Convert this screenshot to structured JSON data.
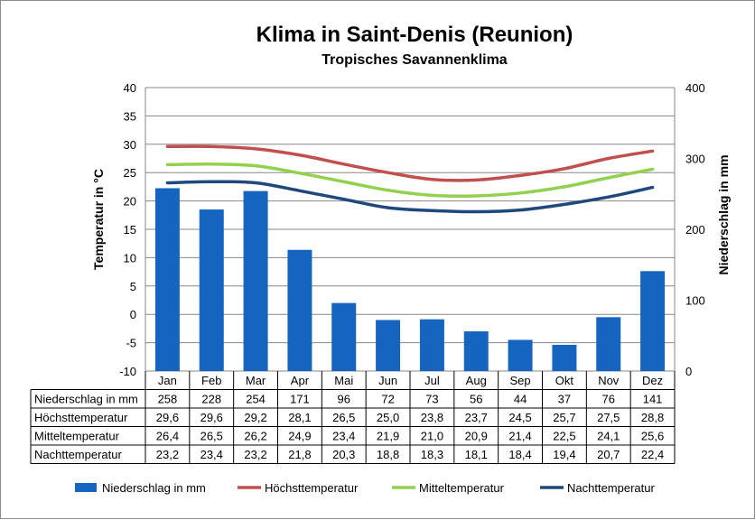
{
  "chart_data": {
    "type": "bar",
    "title": "Klima in Saint-Denis (Reunion)",
    "subtitle": "Tropisches Savannenklima",
    "ylabel": "Temperatur in °C",
    "y2label": "Niederschlag in mm",
    "ylim": [
      -10,
      40
    ],
    "yticks": [
      "40",
      "35",
      "30",
      "25",
      "20",
      "15",
      "10",
      "5",
      "0",
      "-5",
      "-10"
    ],
    "y2lim": [
      0,
      400
    ],
    "y2ticks": [
      "400",
      "300",
      "200",
      "100",
      "0"
    ],
    "grid": true,
    "legend_position": "bottom",
    "categories": [
      "Jan",
      "Feb",
      "Mar",
      "Apr",
      "Mai",
      "Jun",
      "Jul",
      "Aug",
      "Sep",
      "Okt",
      "Nov",
      "Dez"
    ],
    "series": [
      {
        "name": "Niederschlag in mm",
        "type": "bar",
        "axis": "right",
        "color": "#1565C0",
        "values": [
          258,
          228,
          254,
          171,
          96,
          72,
          73,
          56,
          44,
          37,
          76,
          141
        ],
        "display": [
          "258",
          "228",
          "254",
          "171",
          "96",
          "72",
          "73",
          "56",
          "44",
          "37",
          "76",
          "141"
        ]
      },
      {
        "name": "Höchsttemperatur",
        "type": "line",
        "axis": "left",
        "color": "#C0504D",
        "values": [
          29.6,
          29.6,
          29.2,
          28.1,
          26.5,
          25.0,
          23.8,
          23.7,
          24.5,
          25.7,
          27.5,
          28.8
        ],
        "display": [
          "29,6",
          "29,6",
          "29,2",
          "28,1",
          "26,5",
          "25,0",
          "23,8",
          "23,7",
          "24,5",
          "25,7",
          "27,5",
          "28,8"
        ]
      },
      {
        "name": "Mitteltemperatur",
        "type": "line",
        "axis": "left",
        "color": "#92D050",
        "values": [
          26.4,
          26.5,
          26.2,
          24.9,
          23.4,
          21.9,
          21.0,
          20.9,
          21.4,
          22.5,
          24.1,
          25.6
        ],
        "display": [
          "26,4",
          "26,5",
          "26,2",
          "24,9",
          "23,4",
          "21,9",
          "21,0",
          "20,9",
          "21,4",
          "22,5",
          "24,1",
          "25,6"
        ]
      },
      {
        "name": "Nachttemperatur",
        "type": "line",
        "axis": "left",
        "color": "#1F497D",
        "values": [
          23.2,
          23.4,
          23.2,
          21.8,
          20.3,
          18.8,
          18.3,
          18.1,
          18.4,
          19.4,
          20.7,
          22.4
        ],
        "display": [
          "23,2",
          "23,4",
          "23,2",
          "21,8",
          "20,3",
          "18,8",
          "18,3",
          "18,1",
          "18,4",
          "19,4",
          "20,7",
          "22,4"
        ]
      }
    ]
  }
}
